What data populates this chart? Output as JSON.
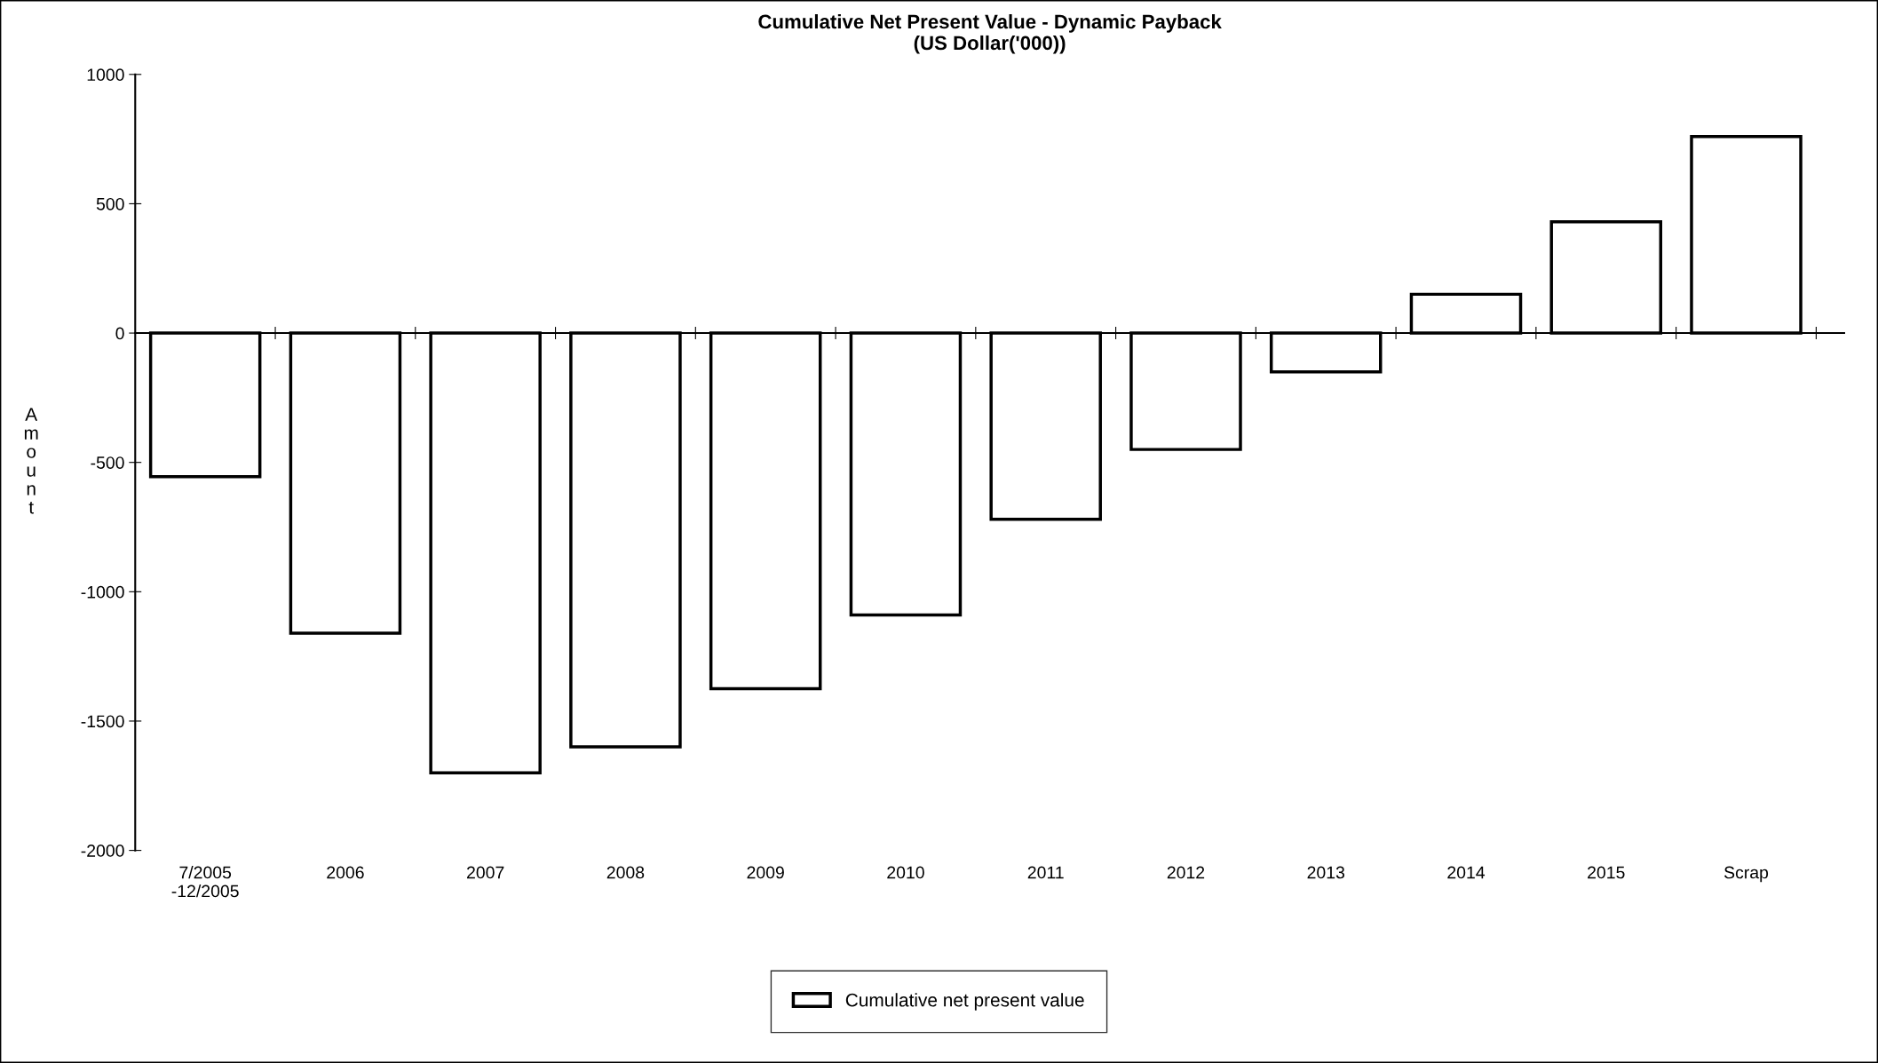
{
  "chart_data": {
    "type": "bar",
    "title": "Cumulative Net Present Value - Dynamic Payback\n(US Dollar('000))",
    "ylabel": "Amount",
    "categories": [
      "7/2005\n-12/2005",
      "2006",
      "2007",
      "2008",
      "2009",
      "2010",
      "2011",
      "2012",
      "2013",
      "2014",
      "2015",
      "Scrap"
    ],
    "series": [
      {
        "name": "Cumulative net present value",
        "color": "#ffffff",
        "values": [
          -555,
          -1160,
          -1700,
          -1600,
          -1375,
          -1090,
          -720,
          -450,
          -150,
          150,
          430,
          760
        ]
      }
    ],
    "ylim": [
      -2000,
      1000
    ],
    "yticks": [
      -2000,
      -1500,
      -1000,
      -500,
      0,
      500,
      1000
    ],
    "legend": "bottom"
  }
}
